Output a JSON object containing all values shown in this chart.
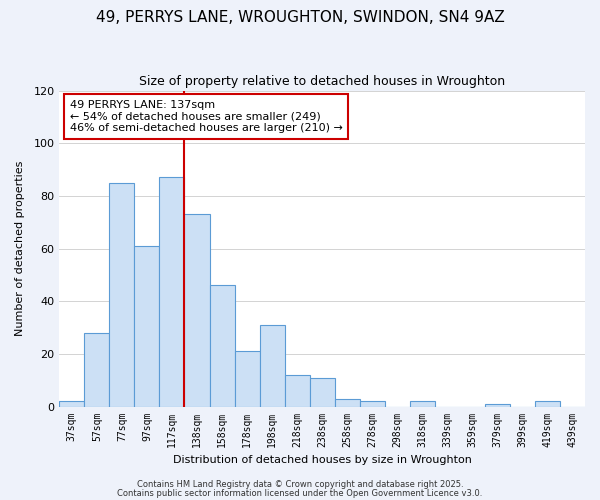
{
  "title": "49, PERRYS LANE, WROUGHTON, SWINDON, SN4 9AZ",
  "subtitle": "Size of property relative to detached houses in Wroughton",
  "xlabel": "Distribution of detached houses by size in Wroughton",
  "ylabel": "Number of detached properties",
  "categories": [
    "37sqm",
    "57sqm",
    "77sqm",
    "97sqm",
    "117sqm",
    "138sqm",
    "158sqm",
    "178sqm",
    "198sqm",
    "218sqm",
    "238sqm",
    "258sqm",
    "278sqm",
    "298sqm",
    "318sqm",
    "339sqm",
    "359sqm",
    "379sqm",
    "399sqm",
    "419sqm",
    "439sqm"
  ],
  "values": [
    2,
    28,
    85,
    61,
    87,
    73,
    46,
    21,
    31,
    12,
    11,
    3,
    2,
    0,
    2,
    0,
    0,
    1,
    0,
    2,
    0
  ],
  "bar_color": "#cce0f5",
  "bar_edge_color": "#5b9bd5",
  "vline_x_pos": 4.5,
  "vline_color": "#cc0000",
  "ylim": [
    0,
    120
  ],
  "yticks": [
    0,
    20,
    40,
    60,
    80,
    100,
    120
  ],
  "annotation_title": "49 PERRYS LANE: 137sqm",
  "annotation_line1": "← 54% of detached houses are smaller (249)",
  "annotation_line2": "46% of semi-detached houses are larger (210) →",
  "annotation_box_color": "#ffffff",
  "annotation_box_edge_color": "#cc0000",
  "footer1": "Contains HM Land Registry data © Crown copyright and database right 2025.",
  "footer2": "Contains public sector information licensed under the Open Government Licence v3.0.",
  "background_color": "#eef2fa",
  "plot_background_color": "#ffffff",
  "grid_color": "#cccccc",
  "title_fontsize": 11,
  "subtitle_fontsize": 9,
  "tick_fontsize": 7,
  "label_fontsize": 8,
  "annot_fontsize": 8,
  "footer_fontsize": 6
}
